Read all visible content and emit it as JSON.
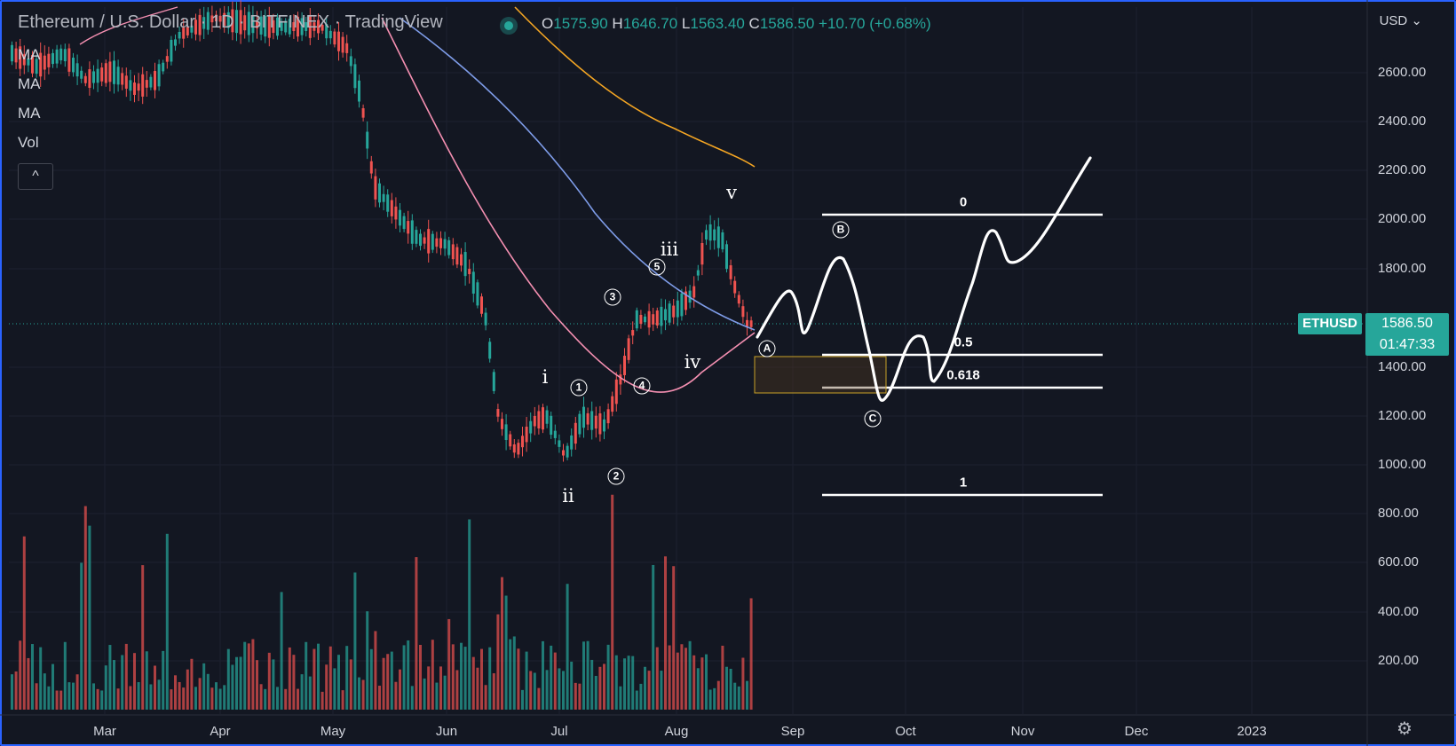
{
  "header": {
    "title": "Ethereum / U.S. Dollar · 1D · BITFINEX · TradingView",
    "ohlc": [
      {
        "k": "O",
        "v": "1575.90"
      },
      {
        "k": "H",
        "v": "1646.70"
      },
      {
        "k": "L",
        "v": "1563.40"
      },
      {
        "k": "C",
        "v": "1586.50"
      },
      {
        "k": "",
        "v": "+10.70 (+0.68%)"
      }
    ]
  },
  "indicators": [
    "MA",
    "MA",
    "MA",
    "Vol"
  ],
  "currency": "USD",
  "y_ticks": [
    "2600.00",
    "2400.00",
    "2200.00",
    "2000.00",
    "1800.00",
    "1400.00",
    "1200.00",
    "1000.00",
    "800.00",
    "600.00",
    "400.00",
    "200.00"
  ],
  "x_ticks": [
    "Mar",
    "Apr",
    "May",
    "Jun",
    "Jul",
    "Aug",
    "Sep",
    "Oct",
    "Nov",
    "Dec",
    "2023"
  ],
  "symbol_tag": "ETHUSD",
  "price_tag": "1586.50",
  "countdown": "01:47:33",
  "wave_labels": [
    "i",
    "ii",
    "iii",
    "iv",
    "v"
  ],
  "circle_labels": [
    "1",
    "2",
    "3",
    "4",
    "5",
    "A",
    "B",
    "C"
  ],
  "fib_labels": [
    "0",
    "0.5",
    "0.618",
    "1"
  ],
  "colors": {
    "up": "#26a69a",
    "down": "#ef5350",
    "ma_pink": "#f48fb1",
    "ma_blue": "#7e9ce8",
    "ma_orange": "#f5a623",
    "frame": "#2962ff"
  }
}
